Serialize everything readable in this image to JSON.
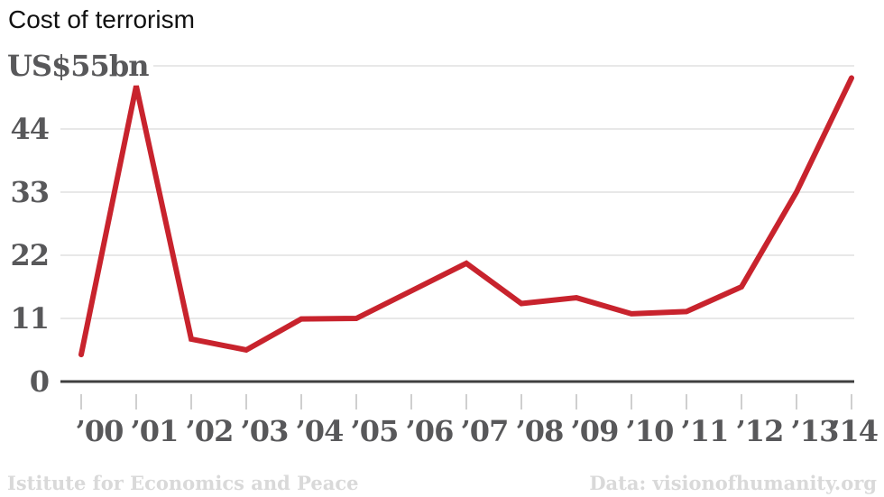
{
  "title": "Cost of terrorism",
  "chart_data": {
    "type": "line",
    "title": "Cost of terrorism",
    "unit": "US$ billions",
    "categories": [
      "’00",
      "’01",
      "’02",
      "’03",
      "’04",
      "’05",
      "’06",
      "’07",
      "’08",
      "’09",
      "’10",
      "’11",
      "’12",
      "’13",
      "’14"
    ],
    "years": [
      2000,
      2001,
      2002,
      2003,
      2004,
      2005,
      2006,
      2007,
      2008,
      2009,
      2010,
      2011,
      2012,
      2013,
      2014
    ],
    "values": [
      4.7,
      51.5,
      7.4,
      5.5,
      10.9,
      11.0,
      15.8,
      20.6,
      13.6,
      14.6,
      11.8,
      12.2,
      16.5,
      33.0,
      52.9
    ],
    "ylim": [
      0,
      55
    ],
    "yticks": [
      {
        "value": 55,
        "label": "US$55bn"
      },
      {
        "value": 44,
        "label": "44"
      },
      {
        "value": 33,
        "label": "33"
      },
      {
        "value": 22,
        "label": "22"
      },
      {
        "value": 11,
        "label": "11"
      },
      {
        "value": 0,
        "label": "0"
      }
    ],
    "grid": true,
    "legend": "none",
    "line_color": "#c8232d"
  },
  "footer": {
    "left": "Istitute for Economics and Peace",
    "right": "Data: visionofhumanity.org"
  },
  "colors": {
    "line": "#c8232d",
    "axis_label": "#58585a",
    "gridline": "#e0e0e0",
    "baseline": "#3f3f3f",
    "tick": "#cfcfcf",
    "footer_text": "#d9d9d9",
    "title_text": "#111111",
    "background": "#ffffff"
  }
}
